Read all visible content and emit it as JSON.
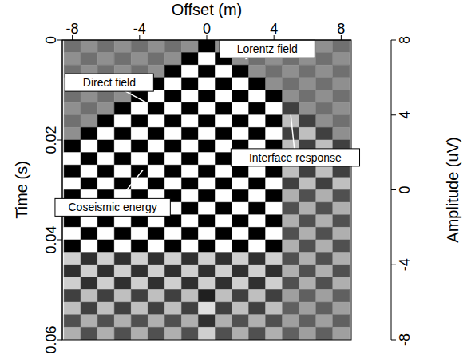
{
  "chart_data": {
    "type": "heatmap",
    "x_label": "Offset (m)",
    "y_label": "Time (s)",
    "x": [
      -8,
      -7,
      -6,
      -5,
      -4,
      -3,
      -2,
      -1,
      0,
      1,
      2,
      3,
      4,
      5,
      6,
      7,
      8
    ],
    "y": [
      0,
      0.0025,
      0.005,
      0.0075,
      0.01,
      0.0125,
      0.015,
      0.0175,
      0.02,
      0.0225,
      0.025,
      0.0275,
      0.03,
      0.0325,
      0.035,
      0.0375,
      0.04,
      0.0425,
      0.045,
      0.0475,
      0.05,
      0.0525,
      0.055,
      0.0575
    ],
    "cells": [
      [
        1,
        -1,
        1,
        -1,
        1,
        -1,
        1,
        -1,
        8,
        -1,
        1,
        -1,
        1,
        -1,
        1,
        -1,
        1
      ],
      [
        -1,
        1,
        -1,
        1,
        -1,
        1,
        -1,
        8,
        -8,
        8,
        -1,
        1,
        -1,
        1,
        -1,
        1,
        -1
      ],
      [
        1,
        -1,
        1,
        -1,
        1,
        -1,
        8,
        -8,
        8,
        -8,
        8,
        -1,
        1,
        -1,
        1,
        -1,
        1
      ],
      [
        -1,
        1,
        -1,
        1,
        -1,
        8,
        -8,
        8,
        -8,
        8,
        -8,
        8,
        -1,
        1,
        -1,
        1,
        -1
      ],
      [
        1,
        -1,
        1,
        -1,
        8,
        -8,
        8,
        -8,
        8,
        -8,
        8,
        -8,
        8,
        -1,
        1,
        -1,
        1
      ],
      [
        -1,
        1,
        -1,
        8,
        -8,
        8,
        -8,
        8,
        -8,
        8,
        -8,
        8,
        -8,
        4,
        -1,
        1,
        -1
      ],
      [
        1,
        -1,
        8,
        -8,
        8,
        -8,
        8,
        -8,
        8,
        -8,
        8,
        -8,
        8,
        -4,
        4,
        -1,
        1
      ],
      [
        -1,
        8,
        -8,
        8,
        -8,
        8,
        -8,
        8,
        -8,
        8,
        -8,
        8,
        -8,
        4,
        -4,
        4,
        -1
      ],
      [
        8,
        -8,
        8,
        -8,
        8,
        -8,
        8,
        -8,
        8,
        -8,
        8,
        -8,
        8,
        -4,
        4,
        -4,
        4
      ],
      [
        -8,
        8,
        -8,
        8,
        -8,
        8,
        -8,
        8,
        -8,
        8,
        -8,
        8,
        -8,
        4,
        -4,
        4,
        -4
      ],
      [
        8,
        -8,
        8,
        -8,
        8,
        -8,
        8,
        -8,
        8,
        -8,
        8,
        -8,
        8,
        -4,
        4,
        -4,
        4
      ],
      [
        -8,
        8,
        -8,
        8,
        -8,
        8,
        -8,
        8,
        -8,
        8,
        -8,
        8,
        -8,
        4,
        -4,
        4,
        -4
      ],
      [
        8,
        -8,
        8,
        -8,
        8,
        -8,
        8,
        -8,
        8,
        -8,
        8,
        -8,
        8,
        -3,
        3,
        -3,
        3
      ],
      [
        -8,
        8,
        -8,
        8,
        -8,
        8,
        -8,
        8,
        -8,
        8,
        -8,
        8,
        -8,
        3,
        -3,
        3,
        -3
      ],
      [
        8,
        -8,
        8,
        -8,
        8,
        -8,
        8,
        -8,
        8,
        -8,
        8,
        -8,
        8,
        -3,
        3,
        -3,
        3
      ],
      [
        -8,
        8,
        -8,
        8,
        -8,
        8,
        -8,
        8,
        -8,
        8,
        -8,
        8,
        -8,
        3,
        -3,
        3,
        -3
      ],
      [
        8,
        -8,
        8,
        -8,
        8,
        -8,
        8,
        -8,
        8,
        -8,
        8,
        -8,
        8,
        -3,
        3,
        -3,
        3
      ],
      [
        -5,
        5,
        -5,
        5,
        -5,
        5,
        -5,
        5,
        -5,
        5,
        -5,
        5,
        -5,
        3,
        -3,
        3,
        -3
      ],
      [
        5,
        -5,
        5,
        -5,
        5,
        -5,
        5,
        -5,
        5,
        -5,
        5,
        -5,
        5,
        -3,
        3,
        -3,
        3
      ],
      [
        -5,
        5,
        -5,
        5,
        -5,
        5,
        -5,
        5,
        -5,
        5,
        -5,
        5,
        -5,
        3,
        -3,
        3,
        -3
      ],
      [
        4,
        -4,
        4,
        -4,
        4,
        -4,
        4,
        -4,
        6,
        -4,
        4,
        -4,
        4,
        -2,
        2,
        -2,
        2
      ],
      [
        -4,
        4,
        -4,
        4,
        -4,
        4,
        -4,
        4,
        -6,
        4,
        -4,
        4,
        -4,
        2,
        -2,
        2,
        -2
      ],
      [
        3,
        -3,
        3,
        -3,
        3,
        -3,
        3,
        -3,
        5,
        -3,
        3,
        -3,
        3,
        -2,
        2,
        -2,
        2
      ],
      [
        -3,
        3,
        -3,
        3,
        -3,
        3,
        -3,
        3,
        -5,
        3,
        -3,
        3,
        -3,
        2,
        -2,
        2,
        -2
      ]
    ],
    "xlim": [
      -8.6,
      8.6
    ],
    "ylim": [
      0,
      0.06
    ],
    "xticks": [
      -8,
      -4,
      0,
      4,
      8
    ],
    "yticks": [
      0,
      0.02,
      0.04,
      0.06
    ],
    "colorbar": {
      "range": [
        -8,
        8
      ],
      "ticks": [
        -8,
        -4,
        0,
        4,
        8
      ],
      "label": "Amplitude (uV)"
    },
    "annotations": [
      "Lorentz field",
      "Direct field",
      "Interface response",
      "Coseismic energy"
    ],
    "grid": false
  }
}
